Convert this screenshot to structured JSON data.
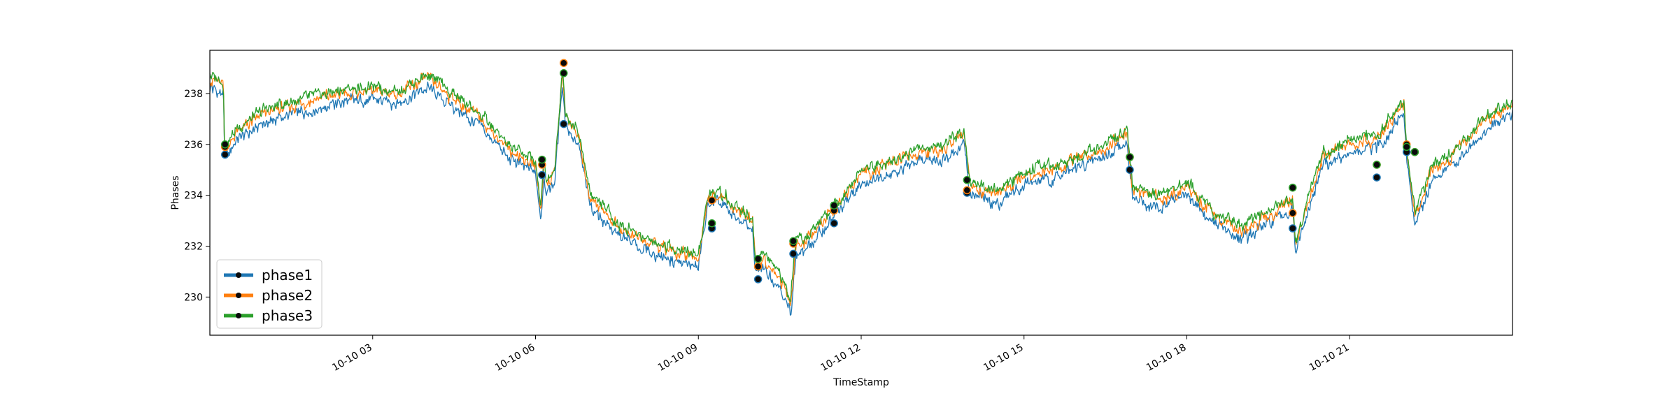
{
  "chart_data": {
    "type": "line",
    "title": "",
    "xlabel": "TimeStamp",
    "ylabel": "Phases",
    "xlim": [
      0,
      24
    ],
    "ylim": [
      228.5,
      239.7
    ],
    "grid": false,
    "legend_placement": "lower-left",
    "x_ticks": [
      {
        "value": 3,
        "label": "10-10 03"
      },
      {
        "value": 6,
        "label": "10-10 06"
      },
      {
        "value": 9,
        "label": "10-10 09"
      },
      {
        "value": 12,
        "label": "10-10 12"
      },
      {
        "value": 15,
        "label": "10-10 15"
      },
      {
        "value": 18,
        "label": "10-10 18"
      },
      {
        "value": 21,
        "label": "10-10 21"
      }
    ],
    "y_ticks": [
      230,
      232,
      234,
      236,
      238
    ],
    "series_base": {
      "x": [
        0,
        0.25,
        0.27,
        0.5,
        1.0,
        1.5,
        2.0,
        2.5,
        3.0,
        3.5,
        4.0,
        4.5,
        5.0,
        5.5,
        6.0,
        6.1,
        6.15,
        6.2,
        6.35,
        6.5,
        6.55,
        6.6,
        6.8,
        7.0,
        7.5,
        8.0,
        8.5,
        9.0,
        9.15,
        9.2,
        9.4,
        9.6,
        10.0,
        10.05,
        10.2,
        10.5,
        10.7,
        10.8,
        11.0,
        11.5,
        12.0,
        12.5,
        13.0,
        13.5,
        13.9,
        14.0,
        14.5,
        15.0,
        15.5,
        16.0,
        16.5,
        16.9,
        17.0,
        17.5,
        18.0,
        18.5,
        19.0,
        19.5,
        19.95,
        20.0,
        20.5,
        21.0,
        21.5,
        22.0,
        22.05,
        22.2,
        22.5,
        23.0,
        23.5,
        24.0
      ],
      "y": [
        238.6,
        238.3,
        235.8,
        236.5,
        237.2,
        237.5,
        237.8,
        238.0,
        238.1,
        238.0,
        238.6,
        237.8,
        237.0,
        235.8,
        235.2,
        233.4,
        235.2,
        234.5,
        234.9,
        238.8,
        237.2,
        237.0,
        236.2,
        234.0,
        232.8,
        232.2,
        231.8,
        231.5,
        233.6,
        234.0,
        234.0,
        233.6,
        233.0,
        231.2,
        231.5,
        230.8,
        229.7,
        232.0,
        232.2,
        233.5,
        234.8,
        235.2,
        235.6,
        235.8,
        236.4,
        234.4,
        234.0,
        234.8,
        235.0,
        235.4,
        235.9,
        236.5,
        234.2,
        233.8,
        234.4,
        233.2,
        232.6,
        233.2,
        233.8,
        232.0,
        235.5,
        236.0,
        236.2,
        237.6,
        235.8,
        233.2,
        234.9,
        235.8,
        236.9,
        237.6
      ]
    },
    "series": [
      {
        "name": "phase1",
        "color": "#1f77b4",
        "offset": -0.35
      },
      {
        "name": "phase2",
        "color": "#ff7f0e",
        "offset": 0.0
      },
      {
        "name": "phase3",
        "color": "#2ca02c",
        "offset": 0.15
      }
    ],
    "markers": [
      {
        "x": 0.28,
        "y": [
          235.6,
          235.9,
          236.0
        ]
      },
      {
        "x": 6.12,
        "y": [
          234.8,
          235.2,
          235.4
        ]
      },
      {
        "x": 6.52,
        "y": [
          236.8,
          239.2,
          238.8
        ]
      },
      {
        "x": 9.25,
        "y": [
          232.7,
          233.8,
          232.9
        ]
      },
      {
        "x": 10.1,
        "y": [
          230.7,
          231.2,
          231.5
        ]
      },
      {
        "x": 10.75,
        "y": [
          231.7,
          232.1,
          232.2
        ]
      },
      {
        "x": 11.5,
        "y": [
          232.9,
          233.4,
          233.6
        ]
      },
      {
        "x": 13.95,
        "y": [
          234.1,
          234.2,
          234.6
        ]
      },
      {
        "x": 16.95,
        "y": [
          235.0,
          235.5,
          235.5
        ]
      },
      {
        "x": 19.95,
        "y": [
          232.7,
          233.3,
          234.3
        ]
      },
      {
        "x": 21.5,
        "y": [
          234.7,
          235.2,
          235.2
        ]
      },
      {
        "x": 22.05,
        "y": [
          235.7,
          236.0,
          235.9
        ]
      },
      {
        "x": 22.2,
        "y": [
          235.7,
          235.7,
          235.7
        ]
      }
    ]
  }
}
